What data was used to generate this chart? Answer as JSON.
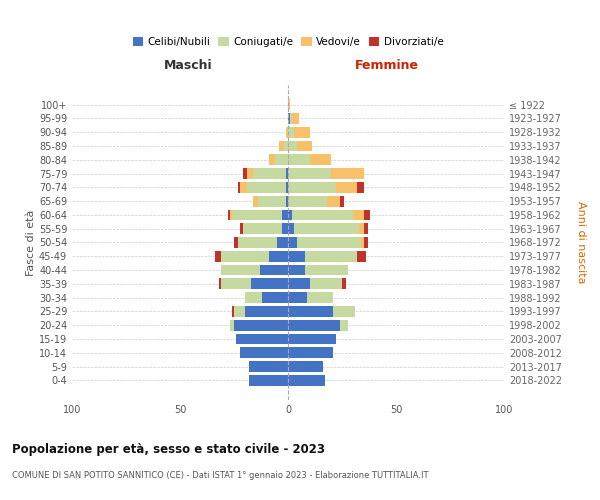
{
  "age_groups": [
    "0-4",
    "5-9",
    "10-14",
    "15-19",
    "20-24",
    "25-29",
    "30-34",
    "35-39",
    "40-44",
    "45-49",
    "50-54",
    "55-59",
    "60-64",
    "65-69",
    "70-74",
    "75-79",
    "80-84",
    "85-89",
    "90-94",
    "95-99",
    "100+"
  ],
  "birth_years": [
    "2018-2022",
    "2013-2017",
    "2008-2012",
    "2003-2007",
    "1998-2002",
    "1993-1997",
    "1988-1992",
    "1983-1987",
    "1978-1982",
    "1973-1977",
    "1968-1972",
    "1963-1967",
    "1958-1962",
    "1953-1957",
    "1948-1952",
    "1943-1947",
    "1938-1942",
    "1933-1937",
    "1928-1932",
    "1923-1927",
    "≤ 1922"
  ],
  "males": {
    "celibe": [
      18,
      18,
      22,
      24,
      25,
      20,
      12,
      17,
      13,
      9,
      5,
      3,
      3,
      1,
      1,
      1,
      0,
      0,
      0,
      0,
      0
    ],
    "coniugato": [
      0,
      0,
      0,
      0,
      2,
      5,
      8,
      14,
      18,
      22,
      18,
      18,
      23,
      13,
      18,
      15,
      6,
      2,
      0,
      0,
      0
    ],
    "vedovo": [
      0,
      0,
      0,
      0,
      0,
      0,
      0,
      0,
      0,
      0,
      0,
      0,
      1,
      2,
      3,
      3,
      3,
      2,
      1,
      0,
      0
    ],
    "divorziato": [
      0,
      0,
      0,
      0,
      0,
      1,
      0,
      1,
      0,
      3,
      2,
      1,
      1,
      0,
      1,
      2,
      0,
      0,
      0,
      0,
      0
    ]
  },
  "females": {
    "nubile": [
      17,
      16,
      21,
      22,
      24,
      21,
      9,
      10,
      8,
      8,
      4,
      3,
      2,
      0,
      0,
      0,
      0,
      0,
      0,
      1,
      0
    ],
    "coniugata": [
      0,
      0,
      0,
      0,
      4,
      10,
      12,
      15,
      20,
      24,
      30,
      30,
      28,
      18,
      22,
      20,
      10,
      4,
      3,
      1,
      0
    ],
    "vedova": [
      0,
      0,
      0,
      0,
      0,
      0,
      0,
      0,
      0,
      0,
      1,
      2,
      5,
      6,
      10,
      15,
      10,
      7,
      7,
      3,
      1
    ],
    "divorziata": [
      0,
      0,
      0,
      0,
      0,
      0,
      0,
      2,
      0,
      4,
      2,
      2,
      3,
      2,
      3,
      0,
      0,
      0,
      0,
      0,
      0
    ]
  },
  "colors": {
    "celibe": "#4472C4",
    "coniugato": "#C6D9A0",
    "vedovo": "#F9C06A",
    "divorziato": "#C0332A"
  },
  "xlim": 100,
  "title": "Popolazione per età, sesso e stato civile - 2023",
  "subtitle": "COMUNE DI SAN POTITO SANNITICO (CE) - Dati ISTAT 1° gennaio 2023 - Elaborazione TUTTITALIA.IT",
  "ylabel_left": "Fasce di età",
  "ylabel_right": "Anni di nascita",
  "xlabel_left": "Maschi",
  "xlabel_right": "Femmine",
  "background_color": "#ffffff",
  "grid_color": "#cccccc"
}
